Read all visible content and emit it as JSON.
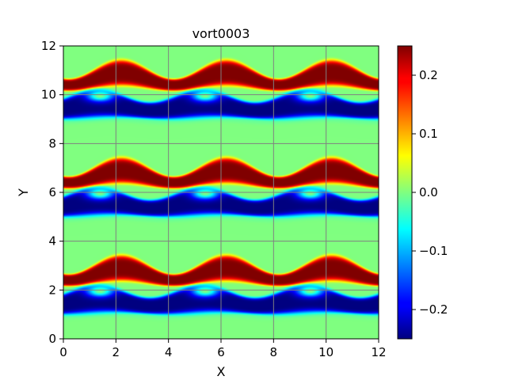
{
  "chart_data": {
    "type": "heatmap",
    "title": "vort0003",
    "xlabel": "X",
    "ylabel": "Y",
    "xlim": [
      0,
      12
    ],
    "ylim": [
      0,
      12
    ],
    "xticks": [
      "0",
      "2",
      "4",
      "6",
      "8",
      "10",
      "12"
    ],
    "yticks": [
      "0",
      "2",
      "4",
      "6",
      "8",
      "10",
      "12"
    ],
    "grid": true,
    "colormap": "jet",
    "clim": [
      -0.25,
      0.25
    ],
    "colorbar_ticks": [
      {
        "value": 0.2,
        "label": "0.2"
      },
      {
        "value": 0.1,
        "label": "0.1"
      },
      {
        "value": 0.0,
        "label": "0.0"
      },
      {
        "value": -0.1,
        "label": "−0.1"
      },
      {
        "value": -0.2,
        "label": "−0.2"
      }
    ],
    "field_description": {
      "periodic_x": 4,
      "periodic_y": 4,
      "background_value": 0.0,
      "positive_band_center_y": 2.6,
      "negative_band_center_y": 1.5
    }
  }
}
